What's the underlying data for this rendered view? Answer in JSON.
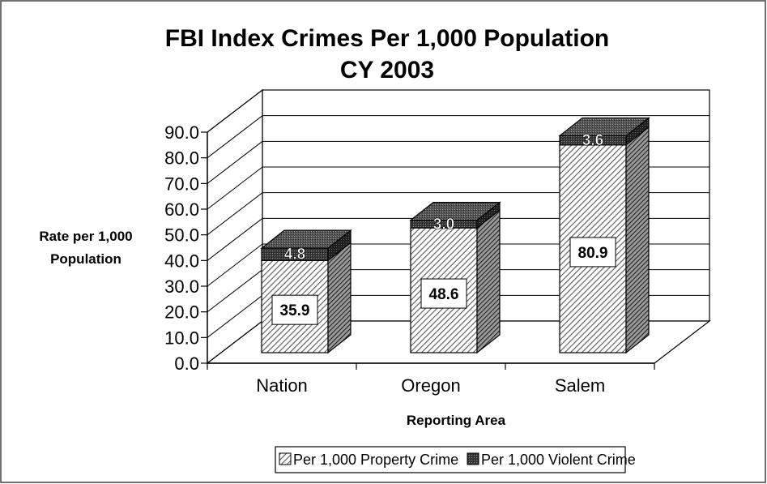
{
  "chart_data": {
    "type": "bar",
    "stacked": true,
    "three_d": true,
    "title": [
      "FBI Index Crimes Per 1,000 Population",
      "CY 2003"
    ],
    "xlabel": "Reporting Area",
    "ylabel": [
      "Rate per 1,000",
      "Population"
    ],
    "ylim": [
      0,
      90
    ],
    "yticks": [
      "0.0",
      "10.0",
      "20.0",
      "30.0",
      "40.0",
      "50.0",
      "60.0",
      "70.0",
      "80.0",
      "90.0"
    ],
    "grid": true,
    "legend_position": "bottom",
    "categories": [
      "Nation",
      "Oregon",
      "Salem"
    ],
    "series": [
      {
        "name": "Per 1,000 Property Crime",
        "values": [
          35.9,
          48.6,
          80.9
        ],
        "labels": [
          "35.9",
          "48.6",
          "80.9"
        ],
        "color": "#bfbfbf",
        "pattern": "hatched"
      },
      {
        "name": "Per 1,000 Violent Crime",
        "values": [
          4.8,
          3.0,
          3.6
        ],
        "labels": [
          "4.8",
          "3.0",
          "3.6"
        ],
        "color": "#333333",
        "pattern": "dark"
      }
    ]
  }
}
